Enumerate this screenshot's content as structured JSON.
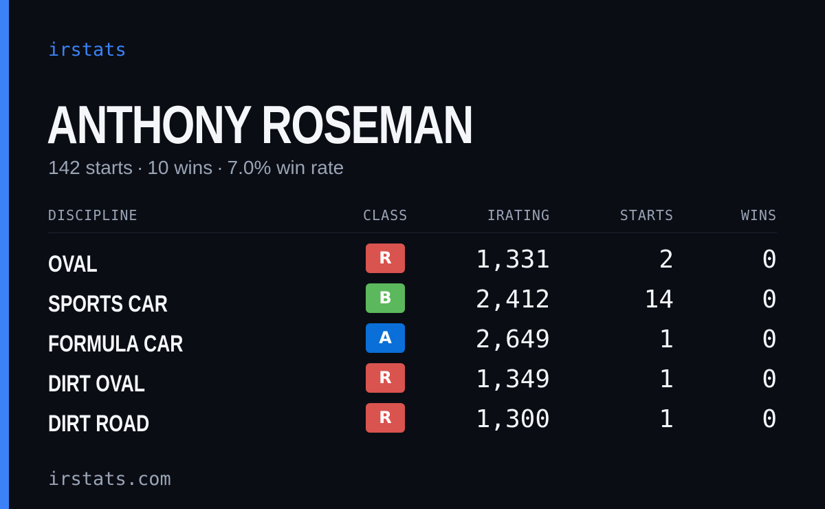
{
  "brand": "irstats",
  "driver": {
    "name": "ANTHONY ROSEMAN",
    "starts_text": "142 starts",
    "wins_text": "10 wins",
    "winrate_text": "7.0% win rate",
    "separator": "·"
  },
  "table": {
    "headers": {
      "discipline": "DISCIPLINE",
      "class": "CLASS",
      "irating": "IRATING",
      "starts": "STARTS",
      "wins": "WINS"
    },
    "rows": [
      {
        "discipline": "OVAL",
        "class": "R",
        "class_color": "#d9534f",
        "irating": "1,331",
        "starts": "2",
        "wins": "0"
      },
      {
        "discipline": "SPORTS CAR",
        "class": "B",
        "class_color": "#5cb85c",
        "irating": "2,412",
        "starts": "14",
        "wins": "0"
      },
      {
        "discipline": "FORMULA CAR",
        "class": "A",
        "class_color": "#0a6fd8",
        "irating": "2,649",
        "starts": "1",
        "wins": "0"
      },
      {
        "discipline": "DIRT OVAL",
        "class": "R",
        "class_color": "#d9534f",
        "irating": "1,349",
        "starts": "1",
        "wins": "0"
      },
      {
        "discipline": "DIRT ROAD",
        "class": "R",
        "class_color": "#d9534f",
        "irating": "1,300",
        "starts": "1",
        "wins": "0"
      }
    ]
  },
  "footer": "irstats.com",
  "colors": {
    "accent": "#3b82f6",
    "background": "#0a0d14",
    "text": "#f4f6fa",
    "muted": "#9aa4b5"
  }
}
